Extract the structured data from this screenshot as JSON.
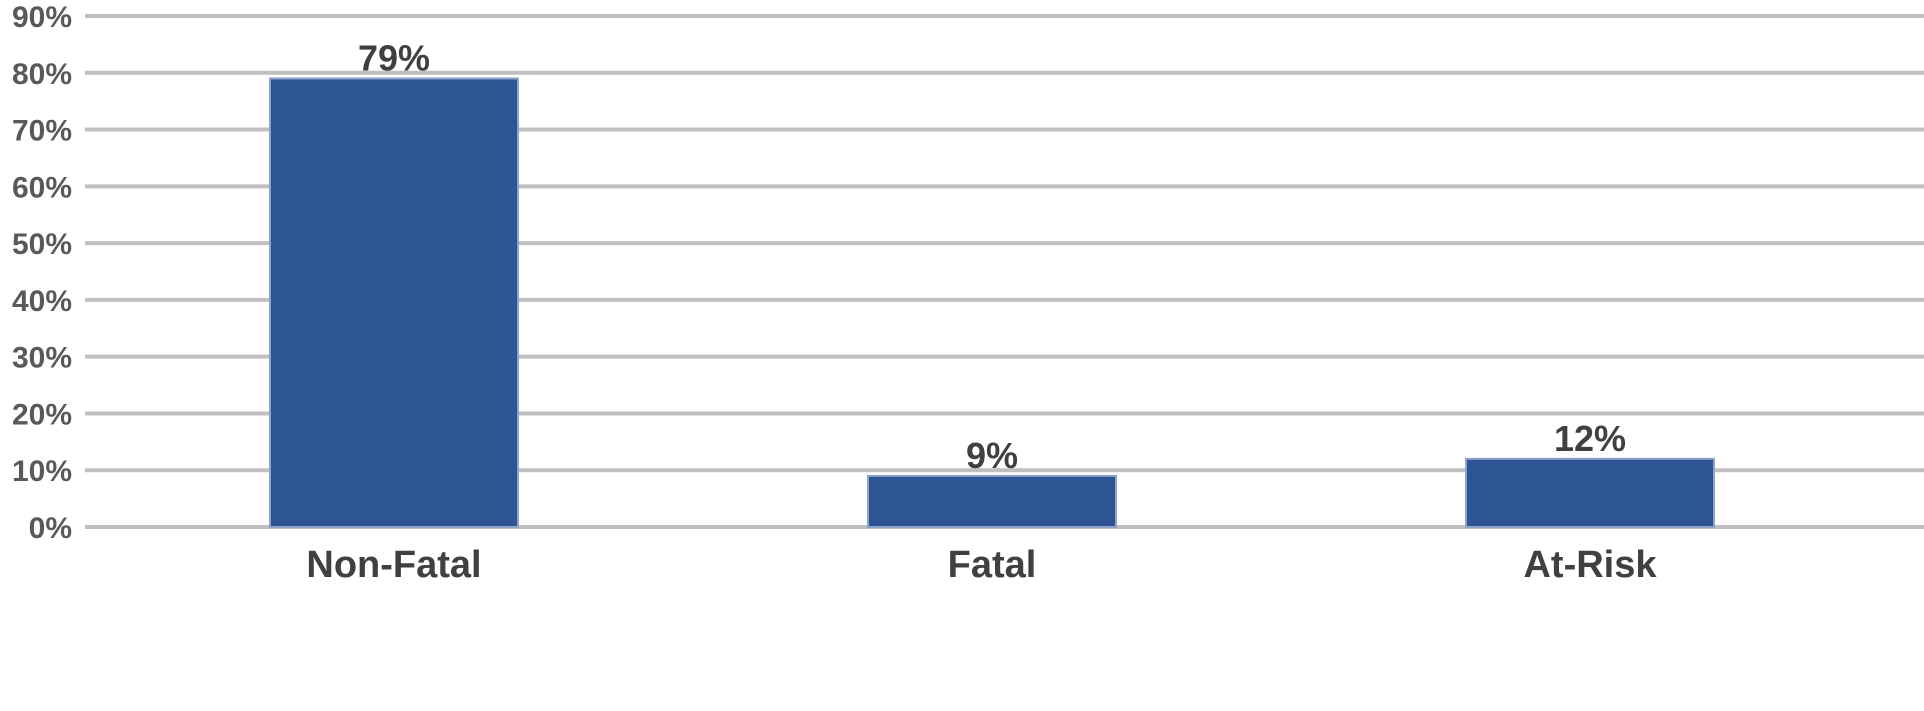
{
  "chart_data": {
    "type": "bar",
    "categories": [
      "Non-Fatal",
      "Fatal",
      "At-Risk"
    ],
    "values": [
      79,
      9,
      12
    ],
    "data_labels": [
      "79%",
      "9%",
      "12%"
    ],
    "ylim": [
      0,
      90
    ],
    "y_ticks": [
      0,
      10,
      20,
      30,
      40,
      50,
      60,
      70,
      80,
      90
    ],
    "y_tick_labels": [
      "0%",
      "10%",
      "20%",
      "30%",
      "40%",
      "50%",
      "60%",
      "70%",
      "80%",
      "90%"
    ],
    "grid": true,
    "legend": "none",
    "colors": {
      "bar": "#2e5593",
      "bar_edge": "#8ea3c8",
      "grid": "#bfbfbf",
      "text": "#404040"
    }
  }
}
